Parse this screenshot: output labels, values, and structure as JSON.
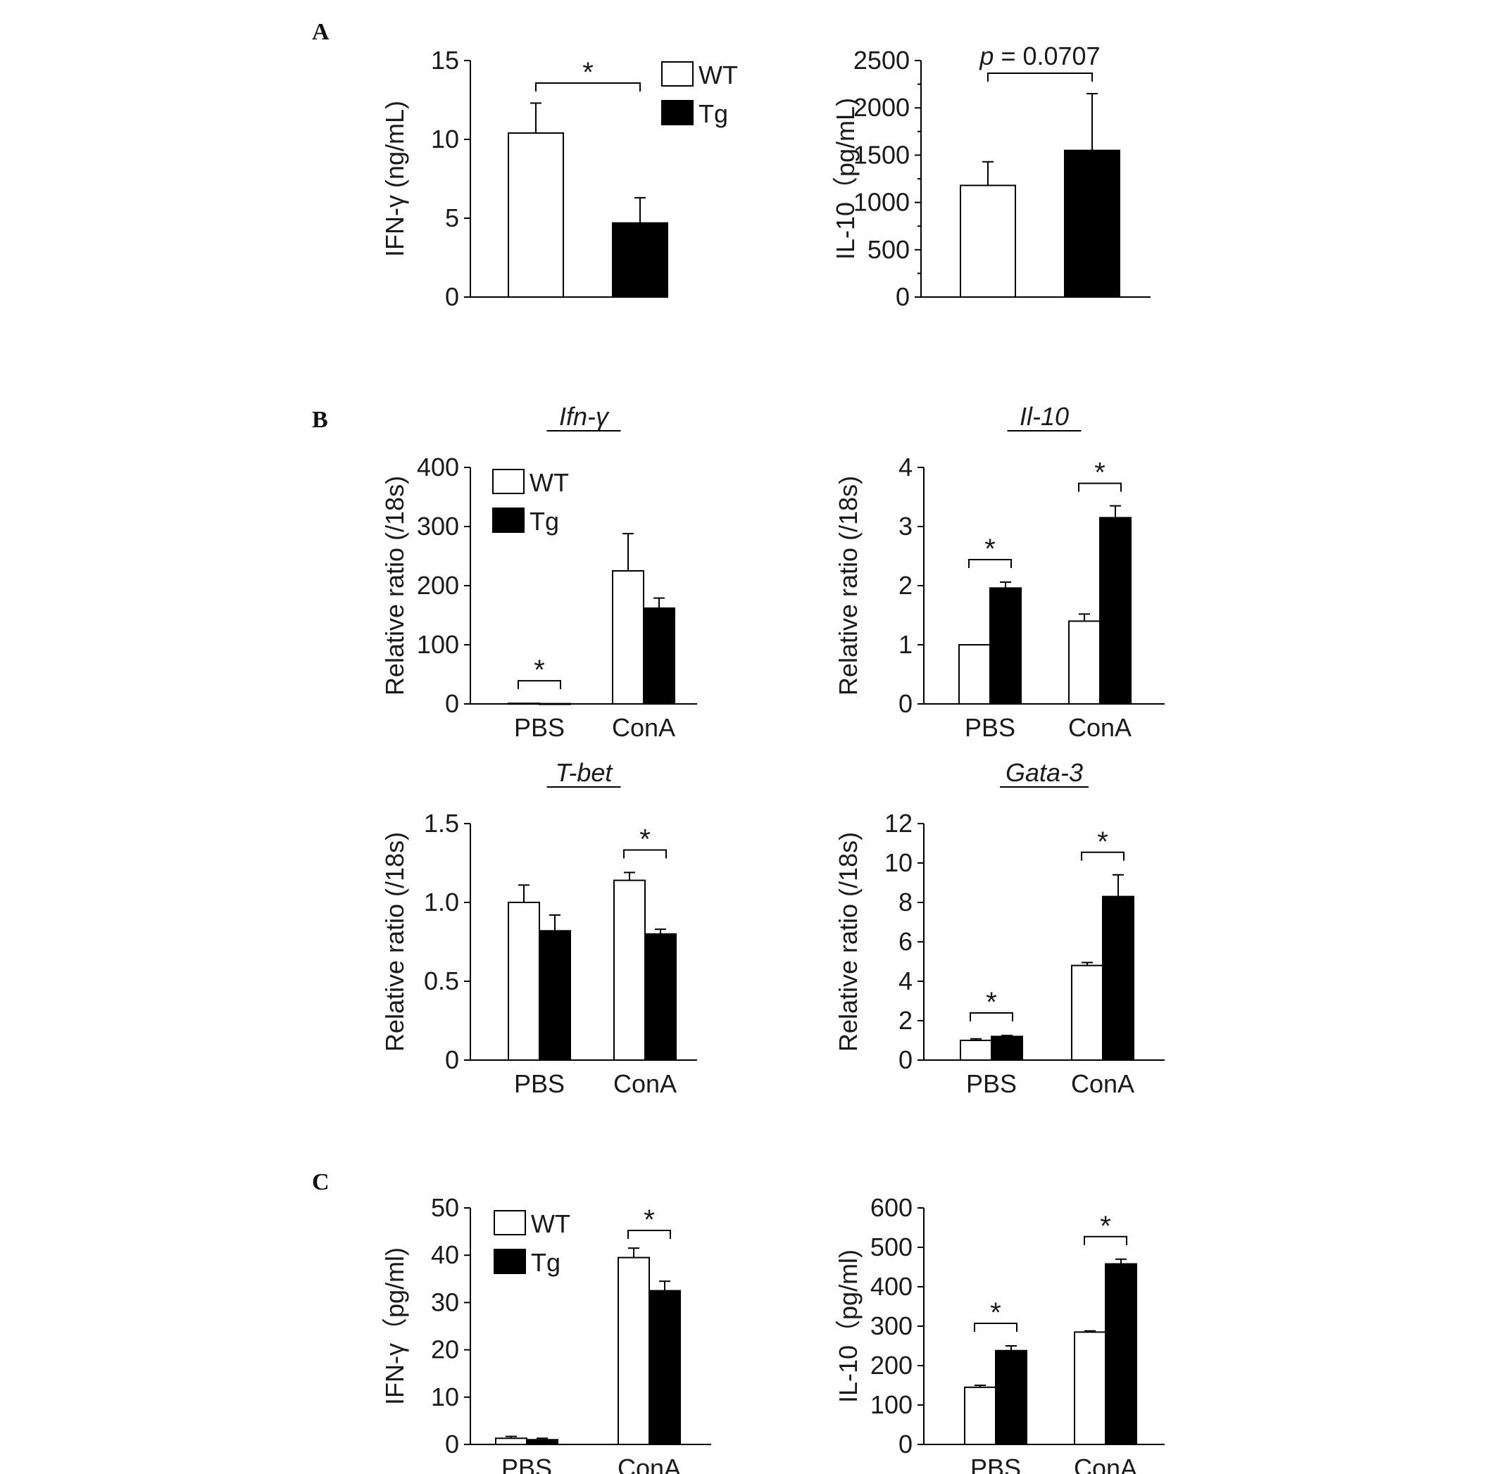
{
  "panels": [
    {
      "letter": "A"
    },
    {
      "letter": "B"
    },
    {
      "letter": "C"
    }
  ],
  "colors": {
    "wt_fill": "#ffffff",
    "tg_fill": "#000000",
    "stroke": "#000000"
  },
  "chart_data": [
    {
      "id": "A-left",
      "panel": "A",
      "type": "bar",
      "title": "",
      "ylabel": "IFN-γ (ng/mL)",
      "xlabel": "",
      "ylim": [
        0,
        15
      ],
      "yticks": [
        "0",
        "5",
        "10",
        "15"
      ],
      "minor_ticks": false,
      "categories": [
        ""
      ],
      "series": [
        {
          "name": "WT",
          "values": [
            10.4
          ],
          "errors": [
            1.9
          ]
        },
        {
          "name": "Tg",
          "values": [
            4.7
          ],
          "errors": [
            1.6
          ]
        }
      ],
      "legend": {
        "position": "top-right",
        "entries": [
          "WT",
          "Tg"
        ]
      },
      "annotations": [
        {
          "type": "bracket",
          "from": "WT",
          "to": "Tg",
          "label": "*"
        }
      ]
    },
    {
      "id": "A-right",
      "panel": "A",
      "type": "bar",
      "title": "",
      "ylabel": "IL-10（pg/mL)",
      "xlabel": "",
      "ylim": [
        0,
        2500
      ],
      "yticks": [
        "0",
        "500",
        "1000",
        "1500",
        "2000",
        "2500"
      ],
      "minor_ticks": true,
      "categories": [
        ""
      ],
      "series": [
        {
          "name": "WT",
          "values": [
            1180
          ],
          "errors": [
            250
          ]
        },
        {
          "name": "Tg",
          "values": [
            1550
          ],
          "errors": [
            600
          ]
        }
      ],
      "annotations": [
        {
          "type": "bracket",
          "from": "WT",
          "to": "Tg",
          "label": "p = 0.0707"
        }
      ]
    },
    {
      "id": "B-ifng",
      "panel": "B",
      "type": "bar",
      "title": "Ifn-γ",
      "ylabel": "Relative ratio (/18s)",
      "xlabel": "",
      "ylim": [
        0,
        400
      ],
      "yticks": [
        "0",
        "100",
        "200",
        "300",
        "400"
      ],
      "minor_ticks": false,
      "categories": [
        "PBS",
        "ConA"
      ],
      "series": [
        {
          "name": "WT",
          "values": [
            1,
            225
          ],
          "errors": [
            0,
            63
          ]
        },
        {
          "name": "Tg",
          "values": [
            0.5,
            162
          ],
          "errors": [
            0,
            17
          ]
        }
      ],
      "legend": {
        "position": "top-left",
        "entries": [
          "WT",
          "Tg"
        ]
      },
      "annotations": [
        {
          "type": "bracket",
          "category": "PBS",
          "label": "*"
        }
      ]
    },
    {
      "id": "B-il10",
      "panel": "B",
      "type": "bar",
      "title": "Il-10",
      "ylabel": "Relative ratio (/18s)",
      "xlabel": "",
      "ylim": [
        0,
        4
      ],
      "yticks": [
        "0",
        "1",
        "2",
        "3",
        "4"
      ],
      "minor_ticks": false,
      "categories": [
        "PBS",
        "ConA"
      ],
      "series": [
        {
          "name": "WT",
          "values": [
            1.0,
            1.4
          ],
          "errors": [
            0,
            0.12
          ]
        },
        {
          "name": "Tg",
          "values": [
            1.96,
            3.15
          ],
          "errors": [
            0.1,
            0.2
          ]
        }
      ],
      "annotations": [
        {
          "type": "bracket",
          "category": "PBS",
          "label": "*"
        },
        {
          "type": "bracket",
          "category": "ConA",
          "label": "*"
        }
      ]
    },
    {
      "id": "B-tbet",
      "panel": "B",
      "type": "bar",
      "title": "T-bet",
      "ylabel": "Relative ratio (/18s)",
      "xlabel": "",
      "ylim": [
        0,
        1.5
      ],
      "yticks": [
        "0",
        "0.5",
        "1.0",
        "1.5"
      ],
      "minor_ticks": false,
      "categories": [
        "PBS",
        "ConA"
      ],
      "series": [
        {
          "name": "WT",
          "values": [
            1.0,
            1.14
          ],
          "errors": [
            0.11,
            0.05
          ]
        },
        {
          "name": "Tg",
          "values": [
            0.82,
            0.8
          ],
          "errors": [
            0.1,
            0.03
          ]
        }
      ],
      "annotations": [
        {
          "type": "bracket",
          "category": "ConA",
          "label": "*"
        }
      ]
    },
    {
      "id": "B-gata3",
      "panel": "B",
      "type": "bar",
      "title": "Gata-3",
      "ylabel": "Relative ratio (/18s)",
      "xlabel": "",
      "ylim": [
        0,
        12
      ],
      "yticks": [
        "0",
        "2",
        "4",
        "6",
        "8",
        "10",
        "12"
      ],
      "minor_ticks": false,
      "categories": [
        "PBS",
        "ConA"
      ],
      "series": [
        {
          "name": "WT",
          "values": [
            1.0,
            4.8
          ],
          "errors": [
            0.08,
            0.15
          ]
        },
        {
          "name": "Tg",
          "values": [
            1.2,
            8.3
          ],
          "errors": [
            0.05,
            1.1
          ]
        }
      ],
      "annotations": [
        {
          "type": "bracket",
          "category": "PBS",
          "label": "*"
        },
        {
          "type": "bracket",
          "category": "ConA",
          "label": "*"
        }
      ]
    },
    {
      "id": "C-ifng",
      "panel": "C",
      "type": "bar",
      "title": "",
      "ylabel": "IFN-γ（pg/ml)",
      "xlabel": "",
      "ylim": [
        0,
        50
      ],
      "yticks": [
        "0",
        "10",
        "20",
        "30",
        "40",
        "50"
      ],
      "minor_ticks": false,
      "categories": [
        "PBS",
        "ConA"
      ],
      "series": [
        {
          "name": "WT",
          "values": [
            1.3,
            39.5
          ],
          "errors": [
            0.4,
            2.0
          ]
        },
        {
          "name": "Tg",
          "values": [
            1.0,
            32.5
          ],
          "errors": [
            0.3,
            2.0
          ]
        }
      ],
      "legend": {
        "position": "top-left",
        "entries": [
          "WT",
          "Tg"
        ]
      },
      "annotations": [
        {
          "type": "bracket",
          "category": "ConA",
          "label": "*"
        }
      ]
    },
    {
      "id": "C-il10",
      "panel": "C",
      "type": "bar",
      "title": "",
      "ylabel": "IL-10（pg/ml)",
      "xlabel": "",
      "ylim": [
        0,
        600
      ],
      "yticks": [
        "0",
        "100",
        "200",
        "300",
        "400",
        "500",
        "600"
      ],
      "minor_ticks": false,
      "categories": [
        "PBS",
        "ConA"
      ],
      "series": [
        {
          "name": "WT",
          "values": [
            145,
            285
          ],
          "errors": [
            5,
            3
          ]
        },
        {
          "name": "Tg",
          "values": [
            238,
            458
          ],
          "errors": [
            12,
            12
          ]
        }
      ],
      "annotations": [
        {
          "type": "bracket",
          "category": "PBS",
          "label": "*"
        },
        {
          "type": "bracket",
          "category": "ConA",
          "label": "*"
        }
      ]
    }
  ]
}
